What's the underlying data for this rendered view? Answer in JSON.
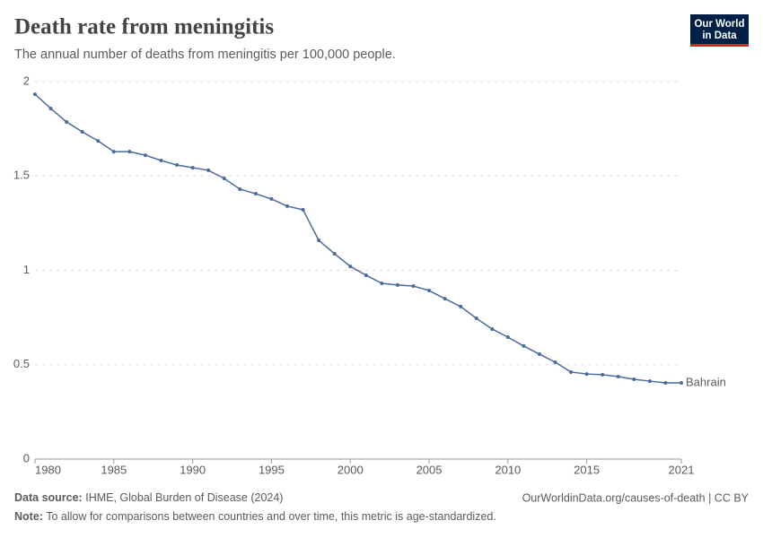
{
  "chart_data": {
    "type": "line",
    "title": "Death rate from meningitis",
    "subtitle": "The annual number of deaths from meningitis per 100,000 people.",
    "x": [
      1980,
      1981,
      1982,
      1983,
      1984,
      1985,
      1986,
      1987,
      1988,
      1989,
      1990,
      1991,
      1992,
      1993,
      1994,
      1995,
      1996,
      1997,
      1998,
      1999,
      2000,
      2001,
      2002,
      2003,
      2004,
      2005,
      2006,
      2007,
      2008,
      2009,
      2010,
      2011,
      2012,
      2013,
      2014,
      2015,
      2016,
      2017,
      2018,
      2019,
      2020,
      2021
    ],
    "series": [
      {
        "name": "Bahrain",
        "color": "#4c6a9c",
        "values": [
          1.933,
          1.857,
          1.786,
          1.734,
          1.686,
          1.629,
          1.629,
          1.61,
          1.582,
          1.558,
          1.544,
          1.53,
          1.487,
          1.43,
          1.406,
          1.378,
          1.34,
          1.321,
          1.159,
          1.088,
          1.021,
          0.974,
          0.931,
          0.922,
          0.917,
          0.893,
          0.85,
          0.808,
          0.746,
          0.689,
          0.646,
          0.599,
          0.556,
          0.513,
          0.461,
          0.451,
          0.447,
          0.437,
          0.423,
          0.413,
          0.404,
          0.404
        ]
      }
    ],
    "xlim": [
      1980,
      2021
    ],
    "xticks": [
      1980,
      1985,
      1990,
      1995,
      2000,
      2005,
      2010,
      2015,
      2021
    ],
    "ylim": [
      0,
      2
    ],
    "yticks": [
      0,
      0.5,
      1,
      1.5,
      2
    ],
    "grid": true
  },
  "logo": [
    "Our World",
    "in Data"
  ],
  "footer": {
    "source_label": "Data source:",
    "source": "IHME, Global Burden of Disease (2024)",
    "url": "OurWorldinData.org/causes-of-death | CC BY",
    "note_label": "Note:",
    "note": "To allow for comparisons between countries and over time, this metric is age-standardized."
  }
}
